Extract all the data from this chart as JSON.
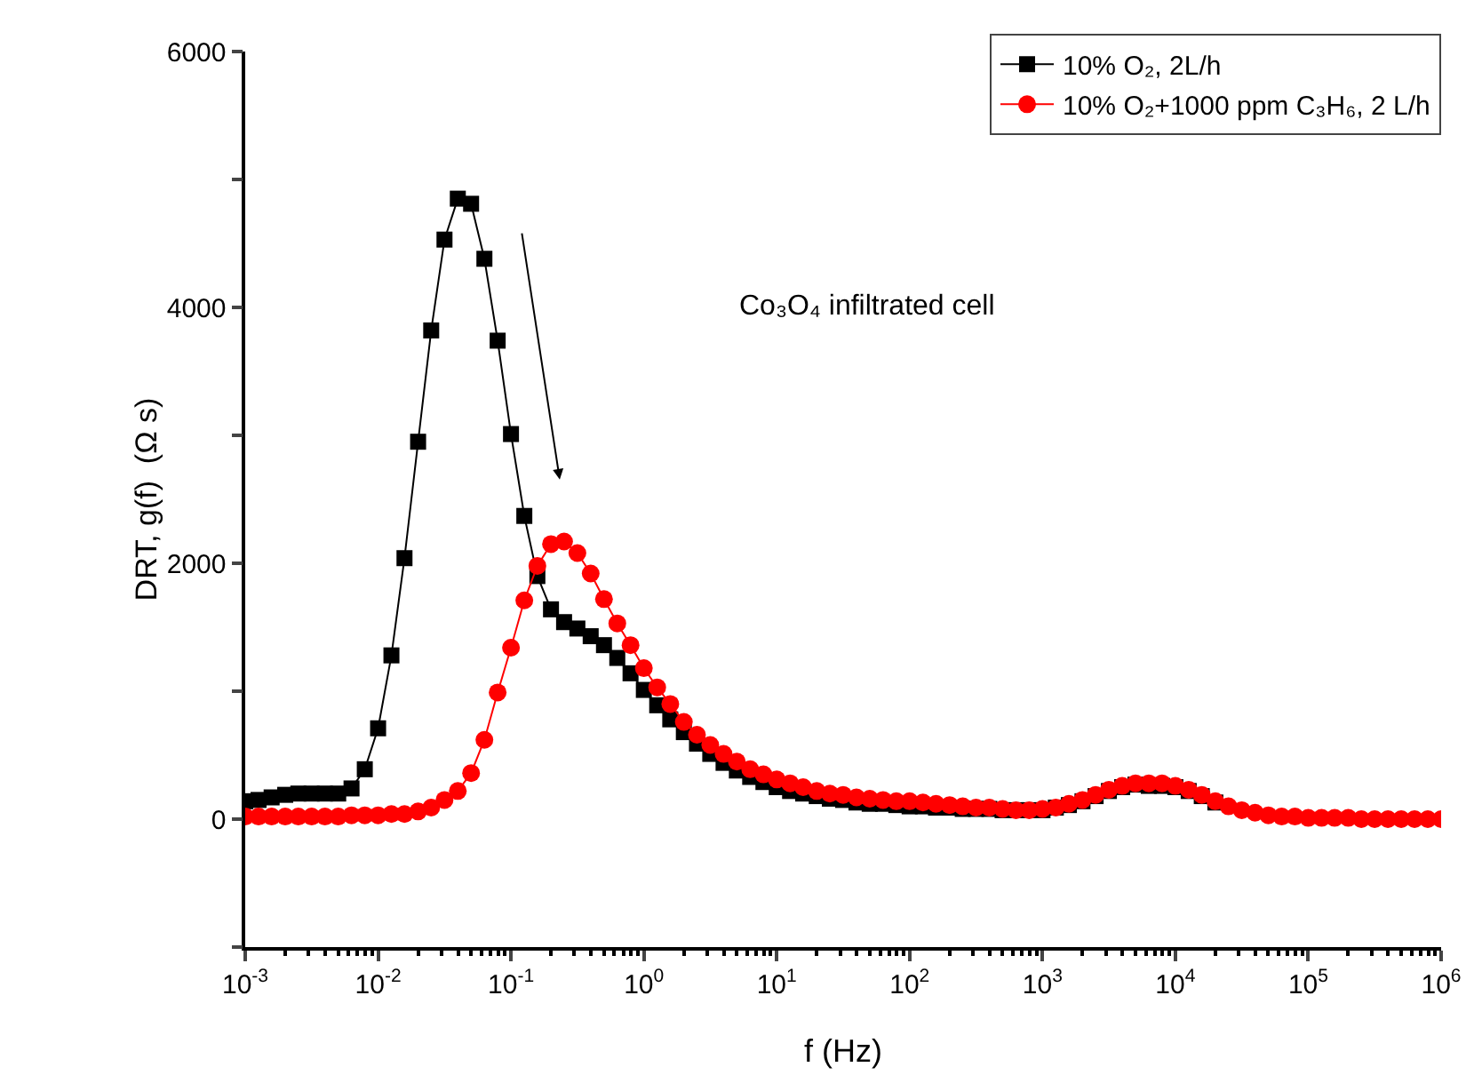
{
  "chart_data": {
    "type": "line",
    "xlabel": "f (Hz)",
    "ylabel": "DRT, g(f)  (Ω s)",
    "log": "x",
    "grid": false,
    "legend": "top right",
    "line_style": "solid",
    "x": [
      0.001,
      0.00126,
      0.00158,
      0.002,
      0.00251,
      0.00316,
      0.00398,
      0.00501,
      0.00631,
      0.00794,
      0.01,
      0.0126,
      0.0158,
      0.02,
      0.0251,
      0.0316,
      0.0398,
      0.0501,
      0.0631,
      0.0794,
      0.1,
      0.126,
      0.158,
      0.2,
      0.251,
      0.316,
      0.398,
      0.501,
      0.631,
      0.794,
      1,
      1.26,
      1.58,
      2,
      2.51,
      3.16,
      3.98,
      5.01,
      6.31,
      7.94,
      10,
      12.6,
      15.8,
      20,
      25.1,
      31.6,
      39.8,
      50.1,
      63.1,
      79.4,
      100,
      126,
      158,
      200,
      251,
      316,
      398,
      501,
      631,
      794,
      1000,
      1260,
      1580,
      2000,
      2510,
      3160,
      3980,
      5010,
      6310,
      7940,
      10000,
      12600,
      15800,
      20000,
      25100,
      31600,
      39800,
      50100,
      63100,
      79400,
      100000,
      126000,
      158000,
      200000,
      251000,
      316000,
      398000,
      501000,
      631000,
      794000,
      1000000
    ],
    "series": [
      {
        "name": "10% O₂, 2L/h",
        "color": "#000000",
        "marker": "square",
        "values": [
          140,
          150,
          170,
          190,
          200,
          200,
          200,
          200,
          240,
          390,
          710,
          1280,
          2040,
          2950,
          3820,
          4530,
          4850,
          4810,
          4380,
          3740,
          3010,
          2370,
          1900,
          1640,
          1540,
          1490,
          1430,
          1360,
          1260,
          1140,
          1010,
          890,
          780,
          680,
          590,
          510,
          440,
          380,
          330,
          290,
          250,
          220,
          200,
          180,
          160,
          150,
          130,
          120,
          120,
          110,
          100,
          100,
          90,
          90,
          80,
          80,
          80,
          70,
          70,
          70,
          70,
          90,
          110,
          140,
          180,
          220,
          250,
          270,
          260,
          260,
          250,
          220,
          180,
          130,
          null,
          null,
          null,
          null,
          null,
          null,
          null,
          null,
          null,
          null,
          null,
          null,
          null,
          null,
          null,
          null,
          null
        ]
      },
      {
        "name": "10% O₂+1000 ppm C₃H₆, 2 L/h",
        "color": "#ff0000",
        "marker": "circle",
        "values": [
          20,
          20,
          20,
          20,
          20,
          20,
          20,
          20,
          30,
          30,
          30,
          40,
          40,
          60,
          90,
          150,
          220,
          360,
          620,
          990,
          1340,
          1710,
          1980,
          2150,
          2170,
          2080,
          1920,
          1720,
          1530,
          1360,
          1180,
          1030,
          900,
          760,
          660,
          580,
          510,
          450,
          390,
          350,
          310,
          280,
          250,
          220,
          200,
          190,
          170,
          160,
          150,
          140,
          140,
          130,
          120,
          110,
          100,
          90,
          90,
          80,
          70,
          70,
          80,
          90,
          120,
          150,
          190,
          230,
          260,
          280,
          280,
          280,
          260,
          230,
          190,
          140,
          100,
          70,
          50,
          30,
          20,
          20,
          10,
          10,
          10,
          10,
          0,
          0,
          0,
          0,
          0,
          0,
          0
        ]
      }
    ],
    "xlim": [
      0.001,
      1000000
    ],
    "xticks": [
      {
        "value": 0.001,
        "label": "10$^{-3}$"
      },
      {
        "value": 0.01,
        "label": "10$^{-2}$"
      },
      {
        "value": 0.1,
        "label": "10$^{-1}$"
      },
      {
        "value": 1,
        "label": "10$^{0}$"
      },
      {
        "value": 10,
        "label": "10$^{1}$"
      },
      {
        "value": 100,
        "label": "10$^{2}$"
      },
      {
        "value": 1000,
        "label": "10$^{3}$"
      },
      {
        "value": 10000,
        "label": "10$^{4}$"
      },
      {
        "value": 100000,
        "label": "10$^{5}$"
      },
      {
        "value": 1000000,
        "label": "10$^{6}$"
      }
    ],
    "ylim": [
      -1000,
      6000
    ],
    "yticks": [
      {
        "value": -1000,
        "label": null
      },
      0,
      {
        "value": 1000,
        "label": null
      },
      2000,
      {
        "value": 3000,
        "label": null
      },
      4000,
      {
        "value": 5000,
        "label": null
      },
      6000
    ],
    "annotations": [
      "Co₃O₄ infiltrated cell"
    ]
  }
}
